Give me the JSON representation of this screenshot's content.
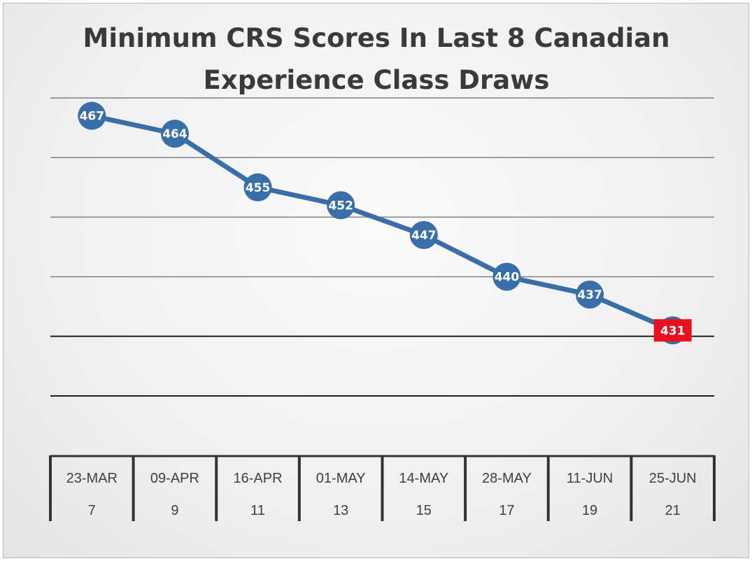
{
  "chart_data": {
    "type": "line",
    "title_lines": [
      "Minimum CRS Scores In Last 8 Canadian",
      "Experience Class Draws"
    ],
    "categories": [
      "23-MAR",
      "09-APR",
      "16-APR",
      "01-MAY",
      "14-MAY",
      "28-MAY",
      "11-JUN",
      "25-JUN"
    ],
    "sub_labels": [
      "7",
      "9",
      "11",
      "13",
      "15",
      "17",
      "19",
      "21"
    ],
    "values": [
      467,
      464,
      455,
      452,
      447,
      440,
      437,
      431
    ],
    "data_labels": [
      "467",
      "464",
      "455",
      "452",
      "447",
      "440",
      "437",
      "431"
    ],
    "ylim": [
      420,
      470
    ],
    "gridlines": [
      470,
      460,
      450,
      440,
      430,
      420
    ],
    "grid": true,
    "xlabel": "",
    "ylabel": "",
    "colors": {
      "line": "#3a6ea8",
      "marker": "#3a6ea8",
      "highlight": "#e8101c"
    },
    "highlight_index": 7
  }
}
